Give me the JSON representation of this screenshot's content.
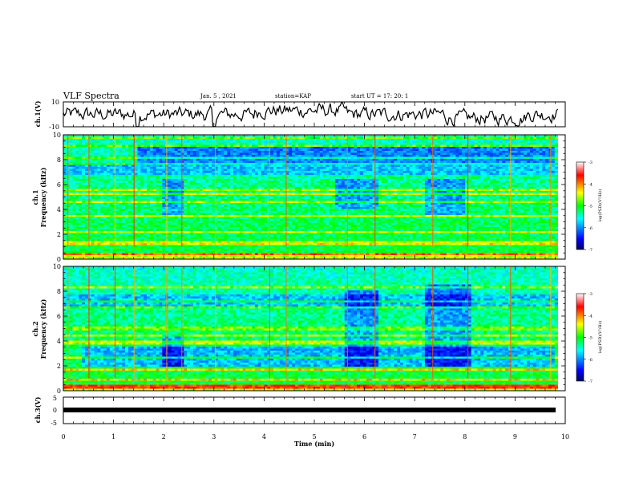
{
  "header": {
    "title": "VLF Spectra",
    "date": "Jan. 5 , 2021",
    "station": "station=KAP",
    "start": "start UT =  17: 20: 1"
  },
  "chart_data": [
    {
      "type": "line",
      "panel": "ch1-waveform",
      "ylabel": "ch.1(V)",
      "ylim": [
        -10,
        10
      ],
      "yticks": [
        "10",
        "-10"
      ],
      "xlim": [
        0,
        10
      ],
      "color": "#000000",
      "note_visible_trend": "noisy signal mostly between -5 and 5 V, dips toward -10 near 1.5 and 3 min"
    },
    {
      "type": "heatmap",
      "panel": "ch1-spectrogram",
      "ylabel_line1": "ch.1",
      "ylabel_line2": "Frequency (kHz)",
      "ylim": [
        0,
        10
      ],
      "yticks": [
        "0",
        "2",
        "4",
        "6",
        "8",
        "10"
      ],
      "xlim": [
        0,
        9.85
      ],
      "colorbar": {
        "label": "log(PSD)(V²/Hz)",
        "range": [
          -7,
          -3
        ],
        "ticks": [
          "-3",
          "-4",
          "-5",
          "-6",
          "-7"
        ],
        "colors": [
          "#000066",
          "#0000ff",
          "#00ffff",
          "#00ff00",
          "#ffff00",
          "#ff0000",
          "#ffffff"
        ]
      }
    },
    {
      "type": "heatmap",
      "panel": "ch2-spectrogram",
      "ylabel_line1": "ch.2",
      "ylabel_line2": "Frequency (kHz)",
      "ylim": [
        0,
        10
      ],
      "yticks": [
        "0",
        "2",
        "4",
        "6",
        "8",
        "10"
      ],
      "xlim": [
        0,
        9.85
      ],
      "colorbar": {
        "label": "log(PSD)(V²/Hz)",
        "range": [
          -7,
          -3
        ],
        "ticks": [
          "-3",
          "-4",
          "-5",
          "-6",
          "-7"
        ],
        "colors": [
          "#000066",
          "#0000ff",
          "#00ffff",
          "#00ff00",
          "#ffff00",
          "#ff0000",
          "#ffffff"
        ]
      }
    },
    {
      "type": "line",
      "panel": "ch3-waveform",
      "ylabel": "ch.3(V)",
      "ylim": [
        -5,
        5
      ],
      "yticks": [
        "5",
        "0",
        "-5"
      ],
      "xlim": [
        0,
        10
      ],
      "color": "#000000"
    }
  ],
  "xaxis": {
    "label": "Time (min)",
    "ticks": [
      "0",
      "1",
      "2",
      "3",
      "4",
      "5",
      "6",
      "7",
      "8",
      "9",
      "10"
    ],
    "range": [
      0,
      10
    ]
  }
}
